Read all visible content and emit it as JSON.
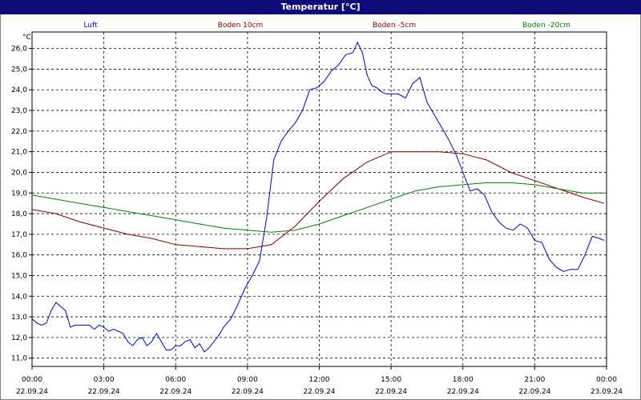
{
  "window": {
    "title": "Temperatur [°C]"
  },
  "colors": {
    "title_bg": "#0a0a78",
    "luft": "#0000cc",
    "boden10": "#800000",
    "boden5": "#800000",
    "boden20": "#008000"
  },
  "chart_data": {
    "type": "line",
    "title": "Temperatur [°C]",
    "ylabel": "°C",
    "xlabel": "",
    "ylim": [
      10.6,
      26.8
    ],
    "xlim": [
      0,
      24
    ],
    "grid": true,
    "legend_position": "top",
    "y_ticks": [
      "11,0",
      "12,0",
      "13,0",
      "14,0",
      "15,0",
      "16,0",
      "17,0",
      "18,0",
      "19,0",
      "20,0",
      "21,0",
      "22,0",
      "23,0",
      "24,0",
      "25,0",
      "26,0"
    ],
    "x_ticks": [
      {
        "time": "00:00",
        "date": "22.09.24"
      },
      {
        "time": "03:00",
        "date": "22.09.24"
      },
      {
        "time": "06:00",
        "date": "22.09.24"
      },
      {
        "time": "09:00",
        "date": "22.09.24"
      },
      {
        "time": "12:00",
        "date": "22.09.24"
      },
      {
        "time": "15:00",
        "date": "22.09.24"
      },
      {
        "time": "18:00",
        "date": "22.09.24"
      },
      {
        "time": "21:00",
        "date": "22.09.24"
      },
      {
        "time": "00:00",
        "date": "23.09.24"
      }
    ],
    "series": [
      {
        "name": "Luft",
        "color": "#0000cc",
        "x": [
          0,
          0.2,
          0.4,
          0.6,
          0.8,
          1.0,
          1.2,
          1.4,
          1.6,
          1.8,
          2.0,
          2.2,
          2.4,
          2.6,
          2.8,
          3.0,
          3.2,
          3.4,
          3.6,
          3.8,
          4.0,
          4.2,
          4.4,
          4.6,
          4.8,
          5.0,
          5.2,
          5.4,
          5.6,
          5.8,
          6.0,
          6.2,
          6.4,
          6.6,
          6.8,
          7.0,
          7.2,
          7.4,
          7.6,
          7.8,
          8.0,
          8.3,
          8.6,
          8.9,
          9.2,
          9.5,
          9.8,
          10.1,
          10.4,
          10.7,
          11.0,
          11.3,
          11.6,
          11.9,
          12.2,
          12.5,
          12.8,
          13.1,
          13.4,
          13.6,
          13.8,
          14.0,
          14.2,
          14.4,
          14.6,
          14.8,
          15.0,
          15.3,
          15.6,
          15.9,
          16.2,
          16.5,
          16.8,
          17.1,
          17.4,
          17.7,
          18.0,
          18.3,
          18.6,
          18.9,
          19.2,
          19.5,
          19.8,
          20.1,
          20.4,
          20.7,
          21.0,
          21.3,
          21.6,
          21.9,
          22.2,
          22.5,
          22.8,
          23.1,
          23.4,
          23.7,
          23.9
        ],
        "values": [
          12.9,
          12.7,
          12.6,
          12.7,
          13.3,
          13.7,
          13.5,
          13.3,
          12.5,
          12.6,
          12.6,
          12.6,
          12.6,
          12.4,
          12.6,
          12.5,
          12.3,
          12.4,
          12.3,
          12.2,
          11.8,
          11.6,
          11.9,
          12.0,
          11.6,
          11.8,
          12.2,
          11.8,
          11.4,
          11.4,
          11.6,
          11.6,
          11.8,
          11.9,
          11.5,
          11.7,
          11.3,
          11.5,
          11.8,
          12.1,
          12.5,
          12.9,
          13.6,
          14.4,
          15.0,
          15.7,
          17.8,
          20.6,
          21.5,
          22.0,
          22.4,
          23.0,
          24.0,
          24.1,
          24.4,
          24.9,
          25.2,
          25.7,
          25.8,
          26.3,
          25.8,
          24.7,
          24.2,
          24.1,
          23.9,
          23.8,
          23.8,
          23.8,
          23.6,
          24.3,
          24.6,
          23.4,
          22.8,
          22.2,
          21.6,
          20.9,
          20.0,
          19.1,
          19.2,
          18.9,
          18.1,
          17.6,
          17.3,
          17.2,
          17.5,
          17.3,
          16.7,
          16.6,
          15.8,
          15.4,
          15.2,
          15.3,
          15.3,
          16.0,
          16.9,
          16.8,
          16.7
        ]
      },
      {
        "name": "Boden 10cm",
        "color": "#800000",
        "x": [
          0,
          1,
          2,
          3,
          4,
          5,
          6,
          7,
          8,
          9,
          10,
          11,
          12,
          13,
          14,
          15,
          16,
          17,
          18,
          19,
          20,
          21,
          22,
          23,
          23.9
        ],
        "values": [
          18.2,
          18.0,
          17.6,
          17.3,
          17.0,
          16.8,
          16.5,
          16.4,
          16.3,
          16.3,
          16.5,
          17.4,
          18.6,
          19.7,
          20.5,
          21.0,
          21.0,
          21.0,
          20.9,
          20.6,
          20.0,
          19.6,
          19.2,
          18.8,
          18.5
        ]
      },
      {
        "name": "Boden -5cm",
        "color": "#800000",
        "x": [],
        "values": []
      },
      {
        "name": "Boden -20cm",
        "color": "#008000",
        "x": [
          0,
          1,
          2,
          3,
          4,
          5,
          6,
          7,
          8,
          9,
          10,
          11,
          12,
          13,
          14,
          15,
          16,
          17,
          18,
          19,
          20,
          21,
          22,
          23,
          23.9
        ],
        "values": [
          18.9,
          18.7,
          18.5,
          18.3,
          18.1,
          17.9,
          17.7,
          17.5,
          17.3,
          17.2,
          17.1,
          17.2,
          17.5,
          17.9,
          18.3,
          18.7,
          19.1,
          19.3,
          19.4,
          19.5,
          19.5,
          19.4,
          19.2,
          19.0,
          19.0
        ]
      }
    ]
  }
}
